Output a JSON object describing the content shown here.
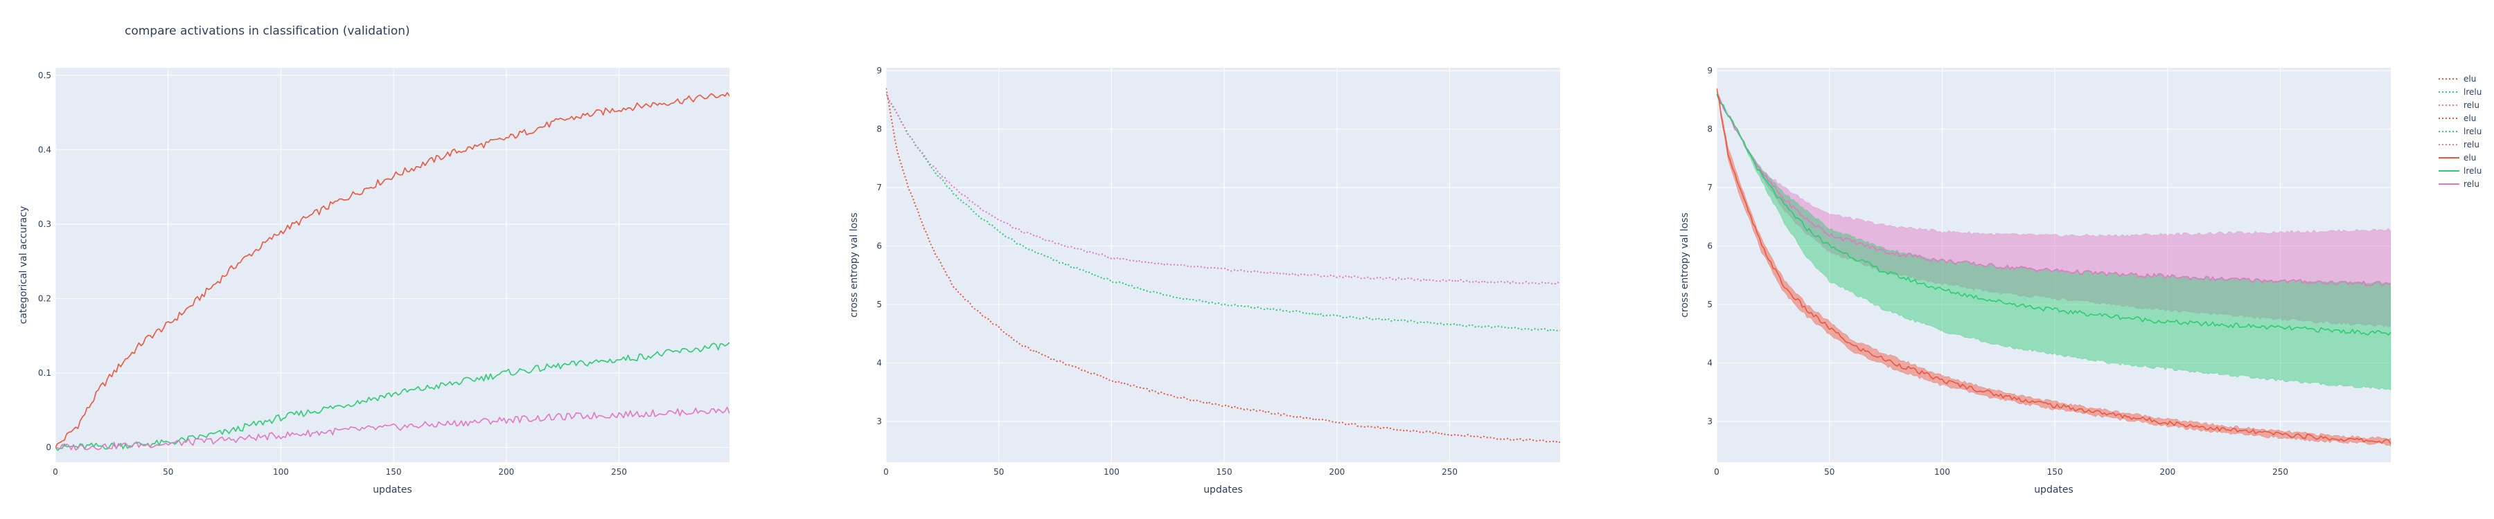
{
  "title": "compare activations in classification (validation)",
  "colors": {
    "elu": "#EF553B",
    "lrelu": "#2ECC71",
    "relu": "#E377C2",
    "plot_bg": "#E5ECF6",
    "grid": "#ffffff",
    "text": "#2a3f5f"
  },
  "legend": {
    "placement": "right",
    "entries": [
      {
        "label": "elu",
        "dash": "dot"
      },
      {
        "label": "lrelu",
        "dash": "dot"
      },
      {
        "label": "relu",
        "dash": "dot"
      },
      {
        "label": "elu",
        "dash": "dot"
      },
      {
        "label": "lrelu",
        "dash": "dot"
      },
      {
        "label": "relu",
        "dash": "dot"
      },
      {
        "label": "elu",
        "dash": "solid"
      },
      {
        "label": "lrelu",
        "dash": "solid"
      },
      {
        "label": "relu",
        "dash": "solid"
      }
    ]
  },
  "chart_data": [
    {
      "type": "line",
      "xlabel": "updates",
      "ylabel": "categorical val accuracy",
      "xlim": [
        0,
        299
      ],
      "ylim": [
        -0.02,
        0.51
      ],
      "xticks": [
        0,
        50,
        100,
        150,
        200,
        250
      ],
      "yticks": [
        0,
        0.1,
        0.2,
        0.3,
        0.4,
        0.5
      ],
      "ytick_labels": [
        "0",
        "0.1",
        "0.2",
        "0.3",
        "0.4",
        "0.5"
      ],
      "series": [
        {
          "name": "elu",
          "dash": "solid",
          "x": [
            0,
            10,
            20,
            30,
            40,
            50,
            60,
            80,
            100,
            125,
            150,
            175,
            200,
            225,
            250,
            275,
            299
          ],
          "y": [
            0,
            0.03,
            0.08,
            0.115,
            0.145,
            0.165,
            0.19,
            0.245,
            0.29,
            0.33,
            0.365,
            0.395,
            0.415,
            0.44,
            0.455,
            0.465,
            0.475
          ]
        },
        {
          "name": "lrelu",
          "dash": "solid",
          "x": [
            0,
            25,
            50,
            75,
            100,
            125,
            150,
            175,
            200,
            225,
            250,
            275,
            299
          ],
          "y": [
            0,
            0.002,
            0.006,
            0.02,
            0.04,
            0.055,
            0.072,
            0.085,
            0.1,
            0.11,
            0.118,
            0.128,
            0.138
          ]
        },
        {
          "name": "relu",
          "dash": "solid",
          "x": [
            0,
            25,
            50,
            75,
            100,
            125,
            150,
            175,
            200,
            225,
            250,
            275,
            299
          ],
          "y": [
            0,
            0.002,
            0.005,
            0.01,
            0.016,
            0.022,
            0.027,
            0.032,
            0.037,
            0.041,
            0.044,
            0.047,
            0.05
          ]
        }
      ]
    },
    {
      "type": "line",
      "xlabel": "updates",
      "ylabel": "cross entropy val loss",
      "xlim": [
        0,
        299
      ],
      "ylim": [
        2.3,
        9.05
      ],
      "xticks": [
        0,
        50,
        100,
        150,
        200,
        250
      ],
      "yticks": [
        3,
        4,
        5,
        6,
        7,
        8,
        9
      ],
      "ytick_labels": [
        "3",
        "4",
        "5",
        "6",
        "7",
        "8",
        "9"
      ],
      "series": [
        {
          "name": "elu",
          "dash": "dot",
          "x": [
            0,
            5,
            10,
            15,
            20,
            30,
            40,
            50,
            60,
            75,
            100,
            125,
            150,
            175,
            200,
            225,
            250,
            275,
            299
          ],
          "y": [
            8.7,
            7.6,
            7.0,
            6.5,
            6.0,
            5.3,
            4.9,
            4.6,
            4.3,
            4.05,
            3.7,
            3.45,
            3.27,
            3.12,
            2.98,
            2.86,
            2.78,
            2.7,
            2.65
          ]
        },
        {
          "name": "lrelu",
          "dash": "dot",
          "x": [
            0,
            10,
            20,
            30,
            40,
            50,
            60,
            75,
            100,
            125,
            150,
            175,
            200,
            225,
            250,
            275,
            299
          ],
          "y": [
            8.6,
            7.9,
            7.35,
            6.9,
            6.55,
            6.25,
            6.0,
            5.75,
            5.4,
            5.15,
            5.0,
            4.9,
            4.8,
            4.73,
            4.66,
            4.6,
            4.55
          ]
        },
        {
          "name": "relu",
          "dash": "dot",
          "x": [
            0,
            10,
            20,
            30,
            40,
            50,
            60,
            75,
            100,
            125,
            150,
            175,
            200,
            225,
            250,
            275,
            299
          ],
          "y": [
            8.6,
            7.9,
            7.4,
            7.0,
            6.7,
            6.45,
            6.25,
            6.05,
            5.8,
            5.68,
            5.6,
            5.53,
            5.48,
            5.44,
            5.41,
            5.38,
            5.36
          ]
        }
      ]
    },
    {
      "type": "area",
      "xlabel": "updates",
      "ylabel": "cross entropy val loss",
      "xlim": [
        0,
        299
      ],
      "ylim": [
        2.3,
        9.05
      ],
      "xticks": [
        0,
        50,
        100,
        150,
        200,
        250
      ],
      "yticks": [
        3,
        4,
        5,
        6,
        7,
        8,
        9
      ],
      "ytick_labels": [
        "3",
        "4",
        "5",
        "6",
        "7",
        "8",
        "9"
      ],
      "series": [
        {
          "name": "relu",
          "dash": "dot",
          "x": [
            0,
            10,
            20,
            30,
            40,
            50,
            75,
            100,
            125,
            150,
            175,
            200,
            225,
            250,
            275,
            299
          ],
          "upper": [
            8.6,
            7.9,
            7.3,
            7.0,
            6.75,
            6.55,
            6.35,
            6.25,
            6.2,
            6.18,
            6.18,
            6.2,
            6.22,
            6.24,
            6.26,
            6.28
          ],
          "lower": [
            8.6,
            7.9,
            7.2,
            6.6,
            6.2,
            5.9,
            5.55,
            5.35,
            5.2,
            5.1,
            5.0,
            4.9,
            4.82,
            4.75,
            4.68,
            4.62
          ]
        },
        {
          "name": "lrelu",
          "dash": "dot",
          "x": [
            0,
            10,
            20,
            30,
            40,
            50,
            75,
            100,
            125,
            150,
            175,
            200,
            225,
            250,
            275,
            299
          ],
          "upper": [
            8.6,
            7.9,
            7.3,
            6.9,
            6.6,
            6.3,
            5.95,
            5.75,
            5.65,
            5.58,
            5.52,
            5.48,
            5.44,
            5.41,
            5.39,
            5.37
          ],
          "lower": [
            8.6,
            7.9,
            7.1,
            6.4,
            5.8,
            5.4,
            4.9,
            4.55,
            4.3,
            4.15,
            4.0,
            3.9,
            3.8,
            3.7,
            3.62,
            3.55
          ]
        },
        {
          "name": "elu",
          "dash": "dot",
          "x": [
            0,
            5,
            10,
            15,
            20,
            30,
            40,
            50,
            60,
            75,
            100,
            125,
            150,
            175,
            200,
            225,
            250,
            275,
            299
          ],
          "upper": [
            8.7,
            7.7,
            7.1,
            6.6,
            6.1,
            5.4,
            5.0,
            4.7,
            4.4,
            4.15,
            3.78,
            3.52,
            3.33,
            3.18,
            3.04,
            2.92,
            2.83,
            2.75,
            2.7
          ],
          "lower": [
            8.7,
            7.5,
            6.9,
            6.4,
            5.9,
            5.2,
            4.8,
            4.5,
            4.2,
            3.95,
            3.62,
            3.38,
            3.21,
            3.06,
            2.92,
            2.8,
            2.72,
            2.65,
            2.6
          ]
        },
        {
          "name": "relu",
          "dash": "solid",
          "x": [
            0,
            10,
            20,
            30,
            40,
            50,
            75,
            100,
            125,
            150,
            175,
            200,
            225,
            250,
            275,
            299
          ],
          "y": [
            8.6,
            7.9,
            7.25,
            6.8,
            6.45,
            6.2,
            5.9,
            5.75,
            5.65,
            5.58,
            5.52,
            5.48,
            5.43,
            5.4,
            5.37,
            5.35
          ]
        },
        {
          "name": "lrelu",
          "dash": "solid",
          "x": [
            0,
            10,
            20,
            30,
            40,
            50,
            75,
            100,
            125,
            150,
            175,
            200,
            225,
            250,
            275,
            299
          ],
          "y": [
            8.6,
            7.9,
            7.2,
            6.7,
            6.3,
            6.0,
            5.55,
            5.25,
            5.05,
            4.9,
            4.8,
            4.7,
            4.65,
            4.6,
            4.55,
            4.5
          ]
        },
        {
          "name": "elu",
          "dash": "solid",
          "x": [
            0,
            5,
            10,
            15,
            20,
            30,
            40,
            50,
            60,
            75,
            100,
            125,
            150,
            175,
            200,
            225,
            250,
            275,
            299
          ],
          "y": [
            8.7,
            7.6,
            7.0,
            6.5,
            6.0,
            5.3,
            4.9,
            4.6,
            4.3,
            4.05,
            3.7,
            3.45,
            3.27,
            3.12,
            2.98,
            2.86,
            2.78,
            2.7,
            2.65
          ]
        }
      ]
    }
  ]
}
